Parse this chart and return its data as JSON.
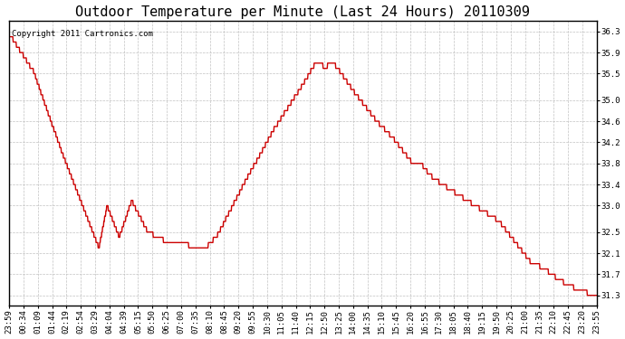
{
  "title": "Outdoor Temperature per Minute (Last 24 Hours) 20110309",
  "copyright_text": "Copyright 2011 Cartronics.com",
  "line_color": "#cc0000",
  "bg_color": "#ffffff",
  "plot_bg_color": "#ffffff",
  "grid_color": "#bbbbbb",
  "ylim": [
    31.1,
    36.5
  ],
  "yticks": [
    31.3,
    31.7,
    32.1,
    32.5,
    33.0,
    33.4,
    33.8,
    34.2,
    34.6,
    35.0,
    35.5,
    35.9,
    36.3
  ],
  "xtick_labels": [
    "23:59",
    "00:34",
    "01:09",
    "01:44",
    "02:19",
    "02:54",
    "03:29",
    "04:04",
    "04:39",
    "05:15",
    "05:50",
    "06:25",
    "07:00",
    "07:35",
    "08:10",
    "08:45",
    "09:20",
    "09:55",
    "10:30",
    "11:05",
    "11:40",
    "12:15",
    "12:50",
    "13:25",
    "14:00",
    "14:35",
    "15:10",
    "15:45",
    "16:20",
    "16:55",
    "17:30",
    "18:05",
    "18:40",
    "19:15",
    "19:50",
    "20:25",
    "21:00",
    "21:35",
    "22:10",
    "22:45",
    "23:20",
    "23:55"
  ],
  "title_fontsize": 11,
  "tick_fontsize": 6.5,
  "copyright_fontsize": 6.5,
  "line_width": 1.0
}
